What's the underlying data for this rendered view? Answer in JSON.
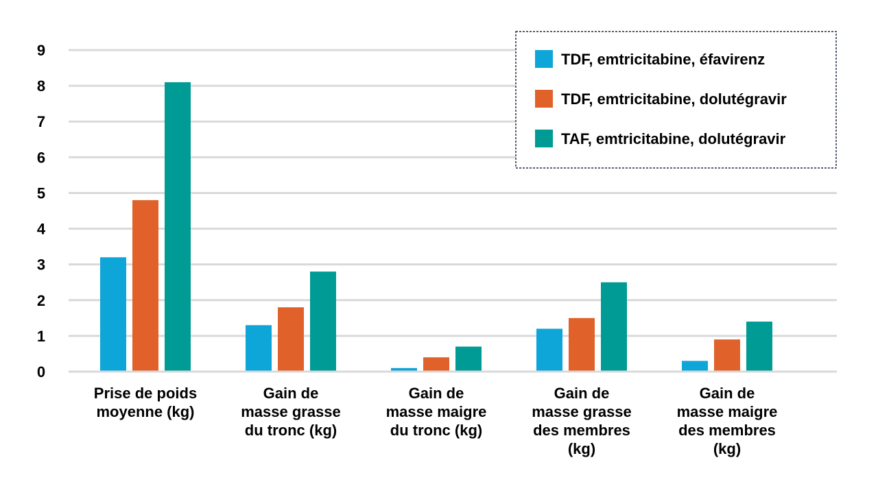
{
  "chart_data": {
    "type": "bar",
    "title": "",
    "xlabel": "",
    "ylabel": "",
    "ylim": [
      0,
      9
    ],
    "yticks": [
      0,
      1,
      2,
      3,
      4,
      5,
      6,
      7,
      8,
      9
    ],
    "grid": true,
    "legend_position": "top-right",
    "categories": [
      [
        "Prise de poids",
        "moyenne (kg)"
      ],
      [
        "Gain de",
        "masse grasse",
        "du tronc (kg)"
      ],
      [
        "Gain de",
        "masse maigre",
        "du tronc (kg)"
      ],
      [
        "Gain de",
        "masse grasse",
        "des membres",
        "(kg)"
      ],
      [
        "Gain de",
        "masse maigre",
        "des membres",
        "(kg)"
      ]
    ],
    "series": [
      {
        "name": "TDF, emtricitabine, éfavirenz",
        "color": "#0ea5d8",
        "values": [
          3.2,
          1.3,
          0.1,
          1.2,
          0.3
        ]
      },
      {
        "name": "TDF, emtricitabine, dolutégravir",
        "color": "#e0622a",
        "values": [
          4.8,
          1.8,
          0.4,
          1.5,
          0.9
        ]
      },
      {
        "name": "TAF, emtricitabine, dolutégravir",
        "color": "#009b95",
        "values": [
          8.1,
          2.8,
          0.7,
          2.5,
          1.4
        ]
      }
    ],
    "gridline_color": "#d9d9d9",
    "legend_border_color": "#1f2a44"
  }
}
